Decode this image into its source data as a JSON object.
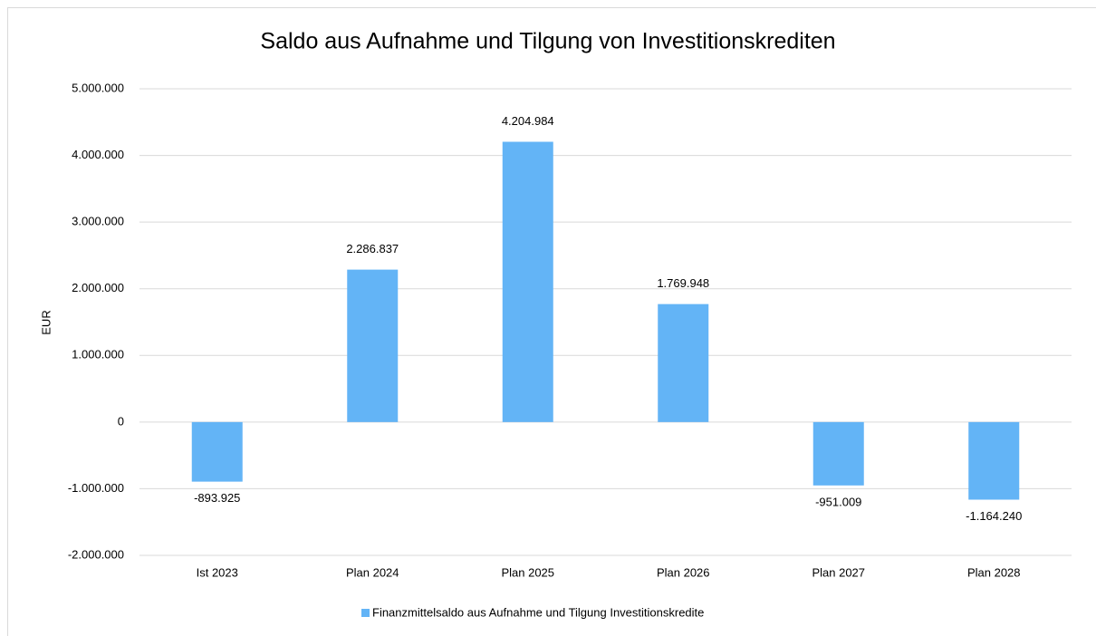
{
  "chart_data": {
    "type": "bar",
    "title": "Saldo aus Aufnahme und Tilgung von Investitionskrediten",
    "ylabel": "EUR",
    "categories": [
      "Ist 2023",
      "Plan 2024",
      "Plan 2025",
      "Plan 2026",
      "Plan 2027",
      "Plan 2028"
    ],
    "series": [
      {
        "name": "Finanzmittelsaldo aus Aufnahme und Tilgung Investitionskredite",
        "color": "#63b4f6",
        "values": [
          -893925,
          2286837,
          4204984,
          1769948,
          -951009,
          -1164240
        ],
        "value_labels": [
          "-893.925",
          "2.286.837",
          "4.204.984",
          "1.769.948",
          "-951.009",
          "-1.164.240"
        ]
      }
    ],
    "ylim": [
      -2000000,
      5000000
    ],
    "yticks": [
      {
        "value": -2000000,
        "label": "-2.000.000"
      },
      {
        "value": -1000000,
        "label": "-1.000.000"
      },
      0,
      {
        "value": 1000000,
        "label": "1.000.000"
      },
      {
        "value": 2000000,
        "label": "2.000.000"
      },
      {
        "value": 3000000,
        "label": "3.000.000"
      },
      {
        "value": 4000000,
        "label": "4.000.000"
      },
      {
        "value": 5000000,
        "label": "5.000.000"
      }
    ],
    "grid": true,
    "legend": "bottom"
  }
}
